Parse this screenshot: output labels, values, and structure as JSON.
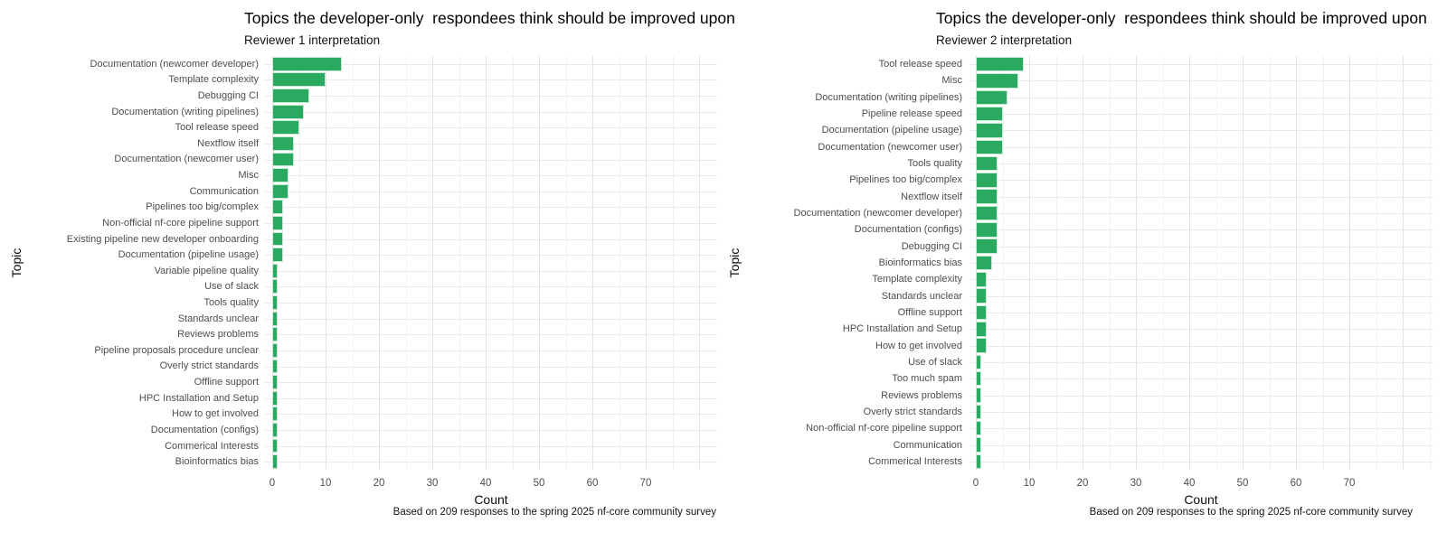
{
  "figure": {
    "background": "#ffffff",
    "bar_color": "#2aa961",
    "gridline_color": "#eaeaea",
    "axis_text_color": "#4d4d4d"
  },
  "chart_data": [
    {
      "type": "bar",
      "orientation": "horizontal",
      "title": "Topics the developer-only  respondees think should be improved upon",
      "subtitle": "Reviewer 1 interpretation",
      "xlabel": "Count",
      "ylabel": "Topic",
      "caption": "Based on 209 responses to the spring 2025 nf-core community survey",
      "legend": "none",
      "grid": true,
      "x_ticks": [
        0,
        10,
        20,
        30,
        40,
        50,
        60,
        70
      ],
      "xlim": [
        0,
        84
      ],
      "bar_color": "#2aa961",
      "categories": [
        "Documentation (newcomer developer)",
        "Template complexity",
        "Debugging CI",
        "Documentation (writing pipelines)",
        "Tool release speed",
        "Nextflow itself",
        "Documentation (newcomer user)",
        "Misc",
        "Communication",
        "Pipelines too big/complex",
        "Non-official nf-core pipeline support",
        "Existing pipeline new developer onboarding",
        "Documentation (pipeline usage)",
        "Variable pipeline quality",
        "Use of slack",
        "Tools quality",
        "Standards unclear",
        "Reviews problems",
        "Pipeline proposals procedure unclear",
        "Overly strict standards",
        "Offline support",
        "HPC Installation and Setup",
        "How to get involved",
        "Documentation (configs)",
        "Commerical Interests",
        "Bioinformatics bias"
      ],
      "values": [
        13,
        10,
        7,
        6,
        5,
        4,
        4,
        3,
        3,
        2,
        2,
        2,
        2,
        1,
        1,
        1,
        1,
        1,
        1,
        1,
        1,
        1,
        1,
        1,
        1,
        1
      ]
    },
    {
      "type": "bar",
      "orientation": "horizontal",
      "title": "Topics the developer-only  respondees think should be improved upon",
      "subtitle": "Reviewer 2 interpretation",
      "xlabel": "Count",
      "ylabel": "Topic",
      "caption": "Based on 209 responses to the spring 2025 nf-core community survey",
      "legend": "none",
      "grid": true,
      "x_ticks": [
        0,
        10,
        20,
        30,
        40,
        50,
        60,
        70
      ],
      "xlim": [
        0,
        85
      ],
      "bar_color": "#2aa961",
      "categories": [
        "Tool release speed",
        "Misc",
        "Documentation (writing pipelines)",
        "Pipeline release speed",
        "Documentation (pipeline usage)",
        "Documentation (newcomer user)",
        "Tools quality",
        "Pipelines too big/complex",
        "Nextflow itself",
        "Documentation (newcomer developer)",
        "Documentation (configs)",
        "Debugging CI",
        "Bioinformatics bias",
        "Template complexity",
        "Standards unclear",
        "Offline support",
        "HPC Installation and Setup",
        "How to get involved",
        "Use of slack",
        "Too much spam",
        "Reviews problems",
        "Overly strict standards",
        "Non-official nf-core pipeline support",
        "Communication",
        "Commerical Interests"
      ],
      "values": [
        9,
        8,
        6,
        5,
        5,
        5,
        4,
        4,
        4,
        4,
        4,
        4,
        3,
        2,
        2,
        2,
        2,
        2,
        1,
        1,
        1,
        1,
        1,
        1,
        1
      ]
    }
  ]
}
